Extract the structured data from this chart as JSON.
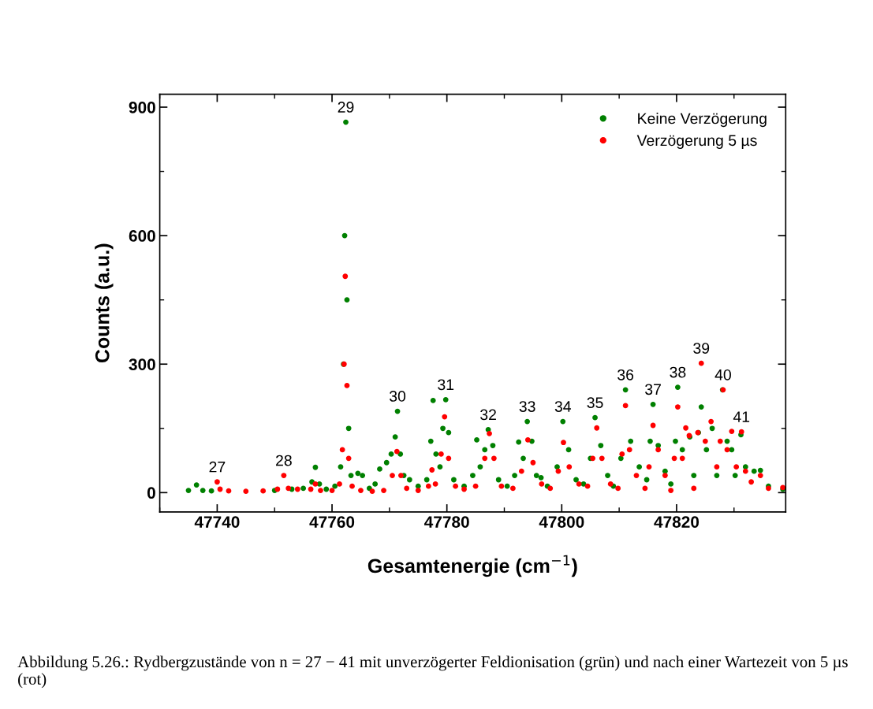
{
  "chart_data": {
    "type": "scatter",
    "xlabel": "Gesamtenergie (cm$^{−1}$)",
    "ylabel": "Counts (a.u.)",
    "xlim": [
      47730,
      47839
    ],
    "xticks": [
      47740,
      47760,
      47780,
      47800,
      47820
    ],
    "ylim": [
      -45,
      930
    ],
    "yticks": [
      0,
      300,
      600,
      900
    ],
    "grid": false,
    "legend": "top right",
    "marker": "circle",
    "series": [
      {
        "name": "Keine Verzögerung",
        "color": "#008000",
        "x": [
          47735.0,
          47736.4,
          47737.5,
          47739,
          47745,
          47750,
          47753,
          47755,
          47756.5,
          47757.1,
          47757.8,
          47759,
          47760.5,
          47761.5,
          47762,
          47762.2,
          47762.4,
          47762.6,
          47762.9,
          47763.3,
          47764.5,
          47765.3,
          47766.5,
          47767.5,
          47768.3,
          47769.5,
          47770.3,
          47771.0,
          47771.4,
          47771.9,
          47772.5,
          47773.5,
          47775,
          47776.5,
          47777.2,
          47777.6,
          47778.1,
          47778.8,
          47779.3,
          47779.8,
          47780.3,
          47781.2,
          47783,
          47784.5,
          47785.2,
          47785.8,
          47786.6,
          47787.2,
          47788,
          47789,
          47790.5,
          47791.8,
          47792.5,
          47793.3,
          47794,
          47794.8,
          47795.6,
          47796.4,
          47797.5,
          47799.2,
          47800.2,
          47801.2,
          47802.5,
          47803.8,
          47805,
          47805.8,
          47806.8,
          47808,
          47809,
          47810.3,
          47811.1,
          47812,
          47813.5,
          47814.8,
          47815.4,
          47815.9,
          47816.8,
          47818,
          47819,
          47819.8,
          47820.2,
          47821,
          47822.3,
          47823,
          47823.8,
          47824.3,
          47825.2,
          47826.2,
          47827,
          47828,
          47828.8,
          47829.6,
          47830.2,
          47831.2,
          47832,
          47833.5,
          47834.6,
          47836,
          47838.5
        ],
        "values": [
          5,
          18,
          5,
          4,
          null,
          5,
          8,
          10,
          25,
          59,
          20,
          8,
          15,
          60,
          300,
          600,
          865,
          450,
          150,
          40,
          45,
          40,
          10,
          20,
          55,
          70,
          90,
          130,
          190,
          90,
          40,
          30,
          15,
          30,
          120,
          215,
          90,
          60,
          150,
          217,
          140,
          30,
          15,
          40,
          123,
          60,
          100,
          147,
          110,
          30,
          15,
          40,
          118,
          80,
          166,
          120,
          40,
          35,
          15,
          60,
          166,
          100,
          30,
          20,
          80,
          175,
          110,
          40,
          15,
          80,
          240,
          120,
          60,
          30,
          120,
          206,
          110,
          50,
          20,
          120,
          246,
          100,
          130,
          40,
          140,
          200,
          100,
          150,
          40,
          240,
          120,
          100,
          40,
          135,
          60,
          50,
          52,
          15,
          8
        ]
      },
      {
        "name": "Verzögerung 5 µs",
        "color": "#ff0000",
        "x": [
          47740,
          47740.5,
          47742,
          47745,
          47748,
          47750.5,
          47751.6,
          47752.4,
          47754,
          47756.3,
          47757.1,
          47758,
          47760,
          47761.3,
          47761.8,
          47762.1,
          47762.3,
          47762.6,
          47762.9,
          47763.5,
          47765,
          47767,
          47769,
          47770.5,
          47771.3,
          47772,
          47773,
          47775,
          47776.8,
          47777.4,
          47778,
          47779,
          47779.6,
          47780.3,
          47781.5,
          47783,
          47785,
          47786.6,
          47787.4,
          47788.2,
          47789.5,
          47791.5,
          47793,
          47794.1,
          47795,
          47796.5,
          47798,
          47799.4,
          47800.3,
          47801.3,
          47803,
          47804.5,
          47805.4,
          47806.1,
          47807,
          47808.5,
          47809.8,
          47810.5,
          47811.1,
          47811.8,
          47813,
          47814.5,
          47815.2,
          47815.9,
          47816.8,
          47818,
          47819,
          47819.6,
          47820.2,
          47821,
          47821.6,
          47822.2,
          47823,
          47823.7,
          47824.3,
          47825,
          47826,
          47827,
          47827.6,
          47828.1,
          47828.8,
          47829.6,
          47830.4,
          47831.3,
          47832,
          47833,
          47834.6,
          47836,
          47838.5
        ],
        "values": [
          25,
          8,
          4,
          3,
          4,
          8,
          40,
          10,
          8,
          8,
          20,
          5,
          5,
          20,
          100,
          300,
          505,
          250,
          80,
          15,
          5,
          3,
          5,
          40,
          96,
          40,
          10,
          5,
          15,
          53,
          20,
          90,
          177,
          80,
          15,
          8,
          15,
          80,
          138,
          80,
          15,
          10,
          50,
          123,
          70,
          20,
          10,
          50,
          117,
          60,
          20,
          15,
          80,
          151,
          80,
          20,
          10,
          90,
          203,
          100,
          40,
          10,
          60,
          157,
          100,
          40,
          5,
          80,
          200,
          80,
          151,
          133,
          10,
          140,
          302,
          120,
          166,
          60,
          120,
          240,
          100,
          143,
          60,
          142,
          50,
          25,
          40,
          10,
          12
        ]
      }
    ],
    "annotations": [
      {
        "text": "27",
        "x": 47740,
        "y": 25
      },
      {
        "text": "28",
        "x": 47751.6,
        "y": 40
      },
      {
        "text": "29",
        "x": 47762.4,
        "y": 865
      },
      {
        "text": "30",
        "x": 47771.4,
        "y": 190
      },
      {
        "text": "31",
        "x": 47779.8,
        "y": 217
      },
      {
        "text": "32",
        "x": 47787.2,
        "y": 147
      },
      {
        "text": "33",
        "x": 47794,
        "y": 166
      },
      {
        "text": "34",
        "x": 47800.2,
        "y": 166
      },
      {
        "text": "35",
        "x": 47805.8,
        "y": 175
      },
      {
        "text": "36",
        "x": 47811.1,
        "y": 240
      },
      {
        "text": "37",
        "x": 47815.9,
        "y": 206
      },
      {
        "text": "38",
        "x": 47820.2,
        "y": 246
      },
      {
        "text": "39",
        "x": 47824.3,
        "y": 302
      },
      {
        "text": "40",
        "x": 47828.1,
        "y": 240
      },
      {
        "text": "41",
        "x": 47831.3,
        "y": 142
      },
      "Abbildung 5.26.: Rydbergzustände von n = 27 − 41 mit unverzögerter Feldionisation (grün) und nach einer Wartezeit von 5 µs (rot)"
    ]
  }
}
